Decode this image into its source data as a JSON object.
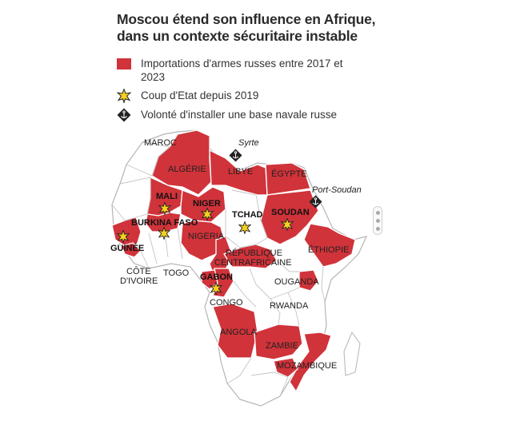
{
  "title_line1": "Moscou étend son influence en Afrique,",
  "title_line2": "dans un contexte sécuritaire instable",
  "legend": {
    "imports_line1": "Importations d'armes russes entre 2017 et",
    "imports_line2": "2023",
    "coup": "Coup d'Etat depuis 2019",
    "naval": "Volonté d'installer une base navale russe"
  },
  "colors": {
    "imports": "#d0333a",
    "land": "#ffffff",
    "border": "#b5b5b5",
    "star": "#f5d020"
  },
  "icons": [
    "star-icon",
    "anchor-diamond-icon"
  ],
  "countries": {
    "maroc": "MAROC",
    "algerie": "ALGÉRIE",
    "libye": "LIBYE",
    "egypte": "ÉGYPTE",
    "mali": "MALI",
    "niger": "NIGER",
    "tchad": "TCHAD",
    "soudan": "SOUDAN",
    "burkina": "BURKINA FASO",
    "guinee": "GUINÉE",
    "nigeria": "NIGERIA",
    "ethiopie": "ÉTHIOPIE",
    "rca1": "RÉPUBLIQUE",
    "rca2": "CENTRAFRICAINE",
    "cote1": "CÔTE",
    "cote2": "D'IVOIRE",
    "togo": "TOGO",
    "gabon": "GABON",
    "ouganda": "OUGANDA",
    "congo": "CONGO",
    "rwanda": "RWANDA",
    "angola": "ANGOLA",
    "zambie": "ZAMBIE",
    "mozambique": "MOZAMBIQUE"
  },
  "ports": {
    "syrte": "Syrte",
    "port_soudan": "Port-Soudan"
  }
}
